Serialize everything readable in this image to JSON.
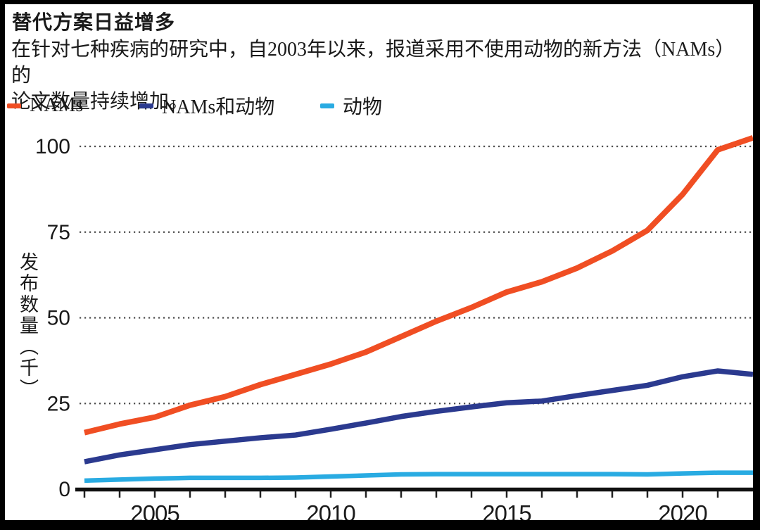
{
  "header": {
    "title": "替代方案日益增多",
    "subtitle_line1": "在针对七种疾病的研究中，自2003年以来，报道采用不使用动物的新方法（NAMs）的",
    "subtitle_line2": "论文数量持续增加。"
  },
  "legend": {
    "items": [
      {
        "label": "NAMs",
        "color": "#F04E23"
      },
      {
        "label": "NAMs和动物",
        "color": "#2B3A8F"
      },
      {
        "label": "动物",
        "color": "#29ABE2"
      }
    ]
  },
  "chart_data": {
    "type": "line",
    "title": "替代方案日益增多",
    "subtitle": "在针对七种疾病的研究中，自2003年以来，报道采用不使用动物的新方法（NAMs）的论文数量持续增加。",
    "ylabel": "发布数量（千）",
    "xlabel": "",
    "x": [
      2003,
      2004,
      2005,
      2006,
      2007,
      2008,
      2009,
      2010,
      2011,
      2012,
      2013,
      2014,
      2015,
      2016,
      2017,
      2018,
      2019,
      2020,
      2021,
      2022
    ],
    "series": [
      {
        "name": "NAMs",
        "color": "#F04E23",
        "values": [
          16.5,
          19,
          21,
          24.5,
          27,
          30.5,
          33.5,
          36.5,
          40,
          44.5,
          49,
          53,
          57.5,
          60.5,
          64.5,
          69.5,
          75.5,
          86,
          99,
          102.5
        ]
      },
      {
        "name": "NAMs和动物",
        "color": "#2B3A8F",
        "values": [
          8,
          10,
          11.5,
          13,
          14,
          15,
          15.8,
          17.5,
          19.3,
          21.2,
          22.7,
          24,
          25.2,
          25.7,
          27.3,
          28.8,
          30.3,
          32.8,
          34.5,
          33.5
        ]
      },
      {
        "name": "动物",
        "color": "#29ABE2",
        "values": [
          2.5,
          2.8,
          3.1,
          3.3,
          3.3,
          3.3,
          3.4,
          3.7,
          4,
          4.3,
          4.4,
          4.4,
          4.4,
          4.4,
          4.4,
          4.4,
          4.3,
          4.6,
          4.8,
          4.8
        ]
      }
    ],
    "ylim": [
      0,
      105
    ],
    "yticks": [
      0,
      25,
      50,
      75,
      100
    ],
    "ytick_labels": [
      "0",
      "25",
      "50",
      "75",
      "100"
    ],
    "xticks_labeled": [
      2005,
      2010,
      2015,
      2020
    ],
    "xtick_labels": [
      "2005",
      "2010",
      "2015",
      "2020"
    ],
    "x_minor_ticks": [
      2003,
      2004,
      2005,
      2006,
      2007,
      2008,
      2009,
      2010,
      2011,
      2012,
      2013,
      2014,
      2015,
      2016,
      2017,
      2018,
      2019,
      2020,
      2021
    ],
    "grid": "horizontal dotted",
    "legend_position": "top-left"
  }
}
